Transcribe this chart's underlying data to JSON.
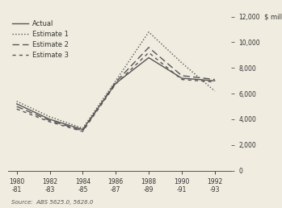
{
  "x_labels": [
    "1980\n-81",
    "1982\n-83",
    "1984\n-85",
    "1986\n-87",
    "1988\n-89",
    "1990\n-91",
    "1992\n-93"
  ],
  "x_positions": [
    0,
    2,
    4,
    6,
    8,
    10,
    12
  ],
  "actual": [
    5200,
    4000,
    3200,
    6800,
    8800,
    7200,
    7000
  ],
  "estimate1": [
    5400,
    4200,
    3300,
    7000,
    10800,
    8400,
    6200
  ],
  "estimate2": [
    5000,
    3900,
    3100,
    6900,
    9600,
    7400,
    7100
  ],
  "estimate3": [
    4800,
    3800,
    3050,
    6750,
    9200,
    7100,
    6900
  ],
  "ylim": [
    0,
    12000
  ],
  "yticks": [
    0,
    2000,
    4000,
    6000,
    8000,
    10000,
    12000
  ],
  "ylabel": "$ million",
  "source": "Source:  ABS 5625.0, 5626.0",
  "line_color": "#555555",
  "bg_color": "#f0ece0"
}
